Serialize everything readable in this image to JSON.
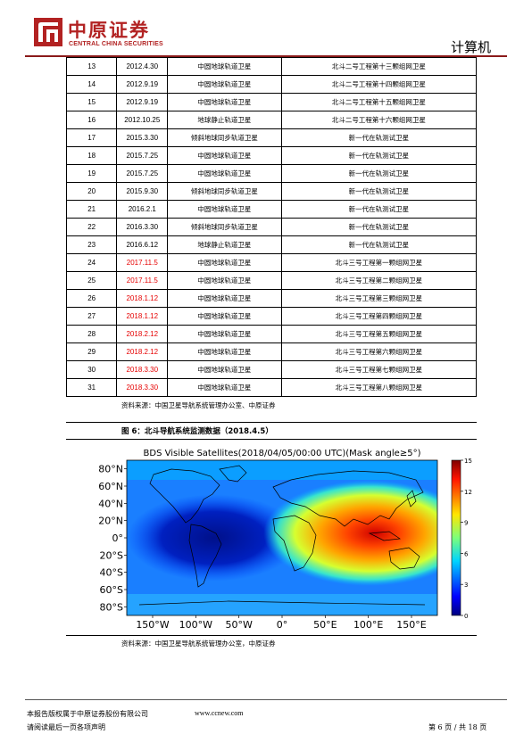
{
  "header": {
    "company_cn": "中原证券",
    "company_en": "CENTRAL CHINA SECURITIES",
    "section": "计算机"
  },
  "table": {
    "rows": [
      {
        "no": "13",
        "date": "2012.4.30",
        "orbit": "中圆地球轨道卫星",
        "desc": "北斗二号工程第十三颗组网卫星",
        "red": false
      },
      {
        "no": "14",
        "date": "2012.9.19",
        "orbit": "中圆地球轨道卫星",
        "desc": "北斗二号工程第十四颗组网卫星",
        "red": false
      },
      {
        "no": "15",
        "date": "2012.9.19",
        "orbit": "中圆地球轨道卫星",
        "desc": "北斗二号工程第十五颗组网卫星",
        "red": false
      },
      {
        "no": "16",
        "date": "2012.10.25",
        "orbit": "地球静止轨道卫星",
        "desc": "北斗二号工程第十六颗组网卫星",
        "red": false
      },
      {
        "no": "17",
        "date": "2015.3.30",
        "orbit": "倾斜地球同步轨道卫星",
        "desc": "新一代在轨测试卫星",
        "red": false
      },
      {
        "no": "18",
        "date": "2015.7.25",
        "orbit": "中圆地球轨道卫星",
        "desc": "新一代在轨测试卫星",
        "red": false
      },
      {
        "no": "19",
        "date": "2015.7.25",
        "orbit": "中圆地球轨道卫星",
        "desc": "新一代在轨测试卫星",
        "red": false
      },
      {
        "no": "20",
        "date": "2015.9.30",
        "orbit": "倾斜地球同步轨道卫星",
        "desc": "新一代在轨测试卫星",
        "red": false
      },
      {
        "no": "21",
        "date": "2016.2.1",
        "orbit": "中圆地球轨道卫星",
        "desc": "新一代在轨测试卫星",
        "red": false
      },
      {
        "no": "22",
        "date": "2016.3.30",
        "orbit": "倾斜地球同步轨道卫星",
        "desc": "新一代在轨测试卫星",
        "red": false
      },
      {
        "no": "23",
        "date": "2016.6.12",
        "orbit": "地球静止轨道卫星",
        "desc": "新一代在轨测试卫星",
        "red": false
      },
      {
        "no": "24",
        "date": "2017.11.5",
        "orbit": "中圆地球轨道卫星",
        "desc": "北斗三号工程第一颗组网卫星",
        "red": true
      },
      {
        "no": "25",
        "date": "2017.11.5",
        "orbit": "中圆地球轨道卫星",
        "desc": "北斗三号工程第二颗组网卫星",
        "red": true
      },
      {
        "no": "26",
        "date": "2018.1.12",
        "orbit": "中圆地球轨道卫星",
        "desc": "北斗三号工程第三颗组网卫星",
        "red": true
      },
      {
        "no": "27",
        "date": "2018.1.12",
        "orbit": "中圆地球轨道卫星",
        "desc": "北斗三号工程第四颗组网卫星",
        "red": true
      },
      {
        "no": "28",
        "date": "2018.2.12",
        "orbit": "中圆地球轨道卫星",
        "desc": "北斗三号工程第五颗组网卫星",
        "red": true
      },
      {
        "no": "29",
        "date": "2018.2.12",
        "orbit": "中圆地球轨道卫星",
        "desc": "北斗三号工程第六颗组网卫星",
        "red": true
      },
      {
        "no": "30",
        "date": "2018.3.30",
        "orbit": "中圆地球轨道卫星",
        "desc": "北斗三号工程第七颗组网卫星",
        "red": true
      },
      {
        "no": "31",
        "date": "2018.3.30",
        "orbit": "中圆地球轨道卫星",
        "desc": "北斗三号工程第八颗组网卫星",
        "red": true
      }
    ],
    "source": "资料来源：中国卫星导航系统管理办公室、中原证券"
  },
  "figure": {
    "caption": "图 6：北斗导航系统监测数据（2018.4.5）",
    "source": "资料来源：中国卫星导航系统管理办公室，中原证券"
  },
  "chart_data": {
    "type": "heatmap",
    "title": "BDS Visible Satellites(2018/04/05/00:00 UTC)(Mask angle≥5°)",
    "x_ticks": [
      "150°W",
      "100°W",
      "50°W",
      "0°",
      "50°E",
      "100°E",
      "150°E"
    ],
    "x_values": [
      -150,
      -100,
      -50,
      0,
      50,
      100,
      150
    ],
    "y_ticks": [
      "80°N",
      "60°N",
      "40°N",
      "20°N",
      "0°",
      "20°S",
      "40°S",
      "60°S",
      "80°S"
    ],
    "y_values": [
      80,
      60,
      40,
      20,
      0,
      -20,
      -40,
      -60,
      -80
    ],
    "xlim": [
      -180,
      180
    ],
    "ylim": [
      -90,
      90
    ],
    "colorbar_ticks": [
      "15",
      "12",
      "9",
      "6",
      "3",
      "0"
    ],
    "colorbar_values": [
      15,
      12,
      9,
      6,
      3,
      0
    ],
    "value_range": [
      0,
      15
    ],
    "peak": {
      "lon": 120,
      "lat": 0,
      "value": 15
    },
    "minimum": {
      "lon": -60,
      "lat": 0,
      "value": 2
    }
  },
  "footer": {
    "copyright": "本报告版权属于中原证券股份有限公司",
    "website": "www.ccnew.com",
    "disclaimer": "请阅读最后一页各项声明",
    "page": "第 6 页 / 共 18 页"
  },
  "colors": {
    "brand_red": "#b22222",
    "highlight_red": "#e60000"
  }
}
